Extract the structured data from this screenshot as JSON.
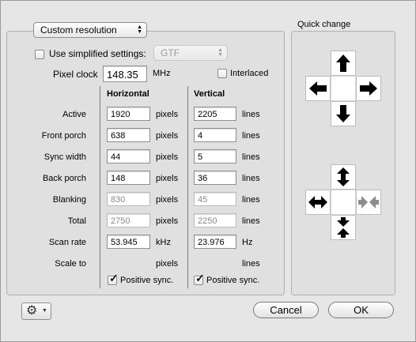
{
  "mode_popup": {
    "value": "Custom resolution"
  },
  "simplified": {
    "label": "Use simplified settings:",
    "checked": false,
    "popup_value": "GTF"
  },
  "pixel_clock": {
    "label": "Pixel clock",
    "value": "148.35",
    "unit": "MHz"
  },
  "interlaced": {
    "label": "Interlaced",
    "checked": false
  },
  "headers": {
    "horizontal": "Horizontal",
    "vertical": "Vertical"
  },
  "rows": [
    {
      "label": "Active",
      "h": "1920",
      "h_unit": "pixels",
      "v": "2205",
      "v_unit": "lines",
      "editable": true
    },
    {
      "label": "Front porch",
      "h": "638",
      "h_unit": "pixels",
      "v": "4",
      "v_unit": "lines",
      "editable": true
    },
    {
      "label": "Sync width",
      "h": "44",
      "h_unit": "pixels",
      "v": "5",
      "v_unit": "lines",
      "editable": true
    },
    {
      "label": "Back porch",
      "h": "148",
      "h_unit": "pixels",
      "v": "36",
      "v_unit": "lines",
      "editable": true
    },
    {
      "label": "Blanking",
      "h": "830",
      "h_unit": "pixels",
      "v": "45",
      "v_unit": "lines",
      "editable": false
    },
    {
      "label": "Total",
      "h": "2750",
      "h_unit": "pixels",
      "v": "2250",
      "v_unit": "lines",
      "editable": false
    },
    {
      "label": "Scan rate",
      "h": "53.945",
      "h_unit": "kHz",
      "v": "23.976",
      "v_unit": "Hz",
      "editable": true
    },
    {
      "label": "Scale to",
      "h": "",
      "h_unit": "pixels",
      "v": "",
      "v_unit": "lines",
      "editable": false
    }
  ],
  "positive_sync": {
    "h_label": "Positive sync.",
    "h_checked": true,
    "v_label": "Positive sync.",
    "v_checked": true
  },
  "quick_change": {
    "title": "Quick change"
  },
  "buttons": {
    "cancel": "Cancel",
    "ok": "OK"
  },
  "icons": {
    "gear": "gear-icon",
    "up": "arrow-up-icon",
    "down": "arrow-down-icon",
    "left": "arrow-left-icon",
    "right": "arrow-right-icon"
  }
}
